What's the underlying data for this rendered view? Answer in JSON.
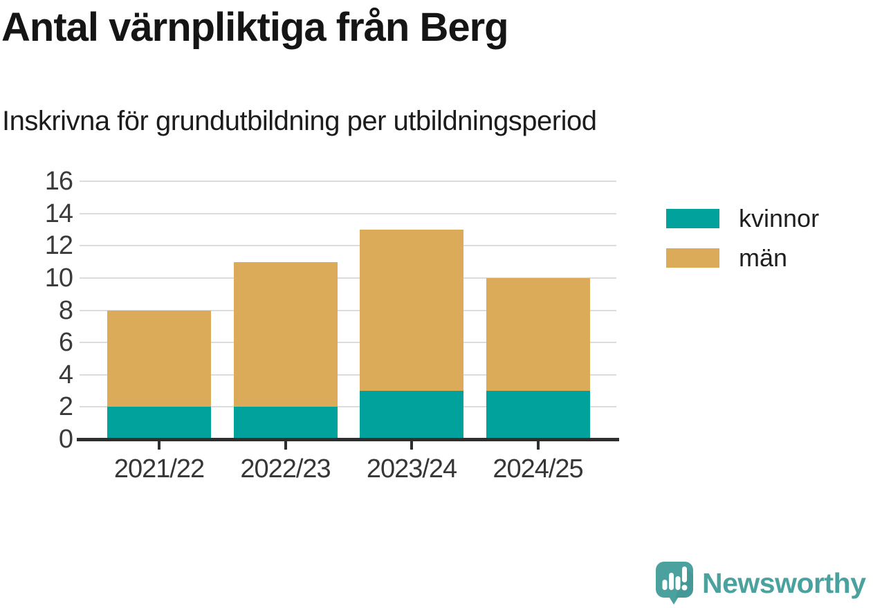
{
  "header": {
    "title": "Antal värnpliktiga från Berg",
    "subtitle": "Inskrivna för grundutbildning per utbildningsperiod"
  },
  "chart_data": {
    "type": "bar",
    "stacked": true,
    "title": "Antal värnpliktiga från Berg",
    "subtitle": "Inskrivna för grundutbildning per utbildningsperiod",
    "categories": [
      "2021/22",
      "2022/23",
      "2023/24",
      "2024/25"
    ],
    "series": [
      {
        "name": "kvinnor",
        "color": "#00a29b",
        "values": [
          2,
          2,
          3,
          3
        ]
      },
      {
        "name": "män",
        "color": "#dcab5a",
        "values": [
          6,
          9,
          10,
          7
        ]
      }
    ],
    "stack_totals": [
      8,
      11,
      13,
      10
    ],
    "ylim": [
      0,
      16
    ],
    "yticks": [
      0,
      2,
      4,
      6,
      8,
      10,
      12,
      14,
      16
    ],
    "grid": true,
    "legend_position": "right"
  },
  "branding": {
    "logo_text": "Newsworthy",
    "logo_color": "#4ba19e"
  },
  "colors": {
    "series_kvinnor": "#00a29b",
    "series_man": "#dcab5a",
    "gridline": "#dcdcdc",
    "axis": "#2e2e2e",
    "axis_text": "#3a3a3a",
    "title_text": "#151515",
    "logo_teal": "#4ba19e"
  }
}
